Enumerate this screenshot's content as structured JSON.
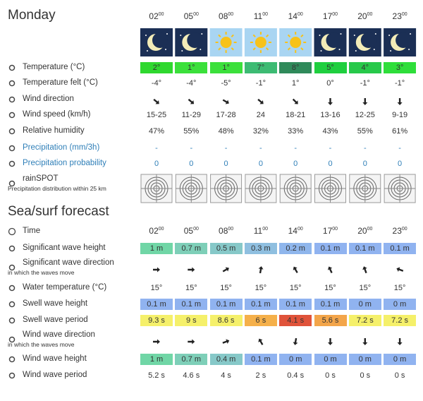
{
  "day": "Monday",
  "hours": [
    {
      "h": "02",
      "m": "00"
    },
    {
      "h": "05",
      "m": "00"
    },
    {
      "h": "08",
      "m": "00"
    },
    {
      "h": "11",
      "m": "00"
    },
    {
      "h": "14",
      "m": "00"
    },
    {
      "h": "17",
      "m": "00"
    },
    {
      "h": "20",
      "m": "00"
    },
    {
      "h": "23",
      "m": "00"
    }
  ],
  "weather": {
    "rows": [
      {
        "label": "Temperature (°C)",
        "values": [
          "2°",
          "1°",
          "1°",
          "7°",
          "8°",
          "5°",
          "4°",
          "3°"
        ],
        "colors": [
          "#2fd82f",
          "#3be03b",
          "#3be03b",
          "#3dbb73",
          "#2f8a5a",
          "#1fcf3f",
          "#27c94a",
          "#2ede3a"
        ]
      },
      {
        "label": "Temperature felt (°C)",
        "values": [
          "-4°",
          "-4°",
          "-5°",
          "-1°",
          "1°",
          "0°",
          "-1°",
          "-1°"
        ]
      },
      {
        "label": "Wind direction"
      },
      {
        "label": "Wind speed (km/h)",
        "values": [
          "15-25",
          "11-29",
          "17-28",
          "24",
          "18-21",
          "13-16",
          "12-25",
          "9-19"
        ]
      },
      {
        "label": "Relative humidity",
        "values": [
          "47%",
          "55%",
          "48%",
          "32%",
          "33%",
          "43%",
          "55%",
          "61%"
        ]
      },
      {
        "label": "Precipitation (mm/3h)",
        "values": [
          "-",
          "-",
          "-",
          "-",
          "-",
          "-",
          "-",
          "-"
        ],
        "color": "#2f7fb8"
      },
      {
        "label": "Precipitation probability",
        "values": [
          "0",
          "0",
          "0",
          "0",
          "0",
          "0",
          "0",
          "0"
        ],
        "color": "#2f7fb8"
      },
      {
        "label": "rainSPOT",
        "sub": "Precipitation distribution within 25 km"
      }
    ]
  },
  "sea": {
    "title": "Sea/surf forecast",
    "time_label": "Time",
    "hours": [
      {
        "h": "02",
        "m": "00"
      },
      {
        "h": "05",
        "m": "00"
      },
      {
        "h": "08",
        "m": "00"
      },
      {
        "h": "11",
        "m": "00"
      },
      {
        "h": "14",
        "m": "00"
      },
      {
        "h": "17",
        "m": "00"
      },
      {
        "h": "20",
        "m": "00"
      },
      {
        "h": "23",
        "m": "00"
      }
    ],
    "rows": [
      {
        "label": "Significant wave height",
        "values": [
          "1 m",
          "0.7 m",
          "0.5 m",
          "0.3 m",
          "0.2 m",
          "0.1 m",
          "0.1 m",
          "0.1 m"
        ],
        "colors": [
          "#70d6a6",
          "#7ecfb8",
          "#86c8c8",
          "#8fbfe0",
          "#8fb6ec",
          "#90b3f0",
          "#90b3f0",
          "#90b3f0"
        ]
      },
      {
        "label": "Significant wave direction",
        "sub": "in which the waves move"
      },
      {
        "label": "Water temperature (°C)",
        "values": [
          "15°",
          "15°",
          "15°",
          "15°",
          "15°",
          "15°",
          "15°",
          "15°"
        ]
      },
      {
        "label": "Swell wave height",
        "values": [
          "0.1 m",
          "0.1 m",
          "0.1 m",
          "0.1 m",
          "0.1 m",
          "0.1 m",
          "0 m",
          "0 m"
        ],
        "colors": [
          "#90b3f0",
          "#90b3f0",
          "#90b3f0",
          "#90b3f0",
          "#90b3f0",
          "#90b3f0",
          "#90b3f0",
          "#90b3f0"
        ]
      },
      {
        "label": "Swell wave period",
        "values": [
          "9.3 s",
          "9 s",
          "8.6 s",
          "6 s",
          "4.1 s",
          "5.6 s",
          "7.2 s",
          "7.2 s"
        ],
        "colors": [
          "#f5f06a",
          "#f5f06a",
          "#f5f06a",
          "#f5b04a",
          "#e0533a",
          "#f3a54a",
          "#f5f06a",
          "#f5f06a"
        ]
      },
      {
        "label": "Wind wave direction",
        "sub": "in which the waves move"
      },
      {
        "label": "Wind wave height",
        "values": [
          "1 m",
          "0.7 m",
          "0.4 m",
          "0.1 m",
          "0 m",
          "0 m",
          "0 m",
          "0 m"
        ],
        "colors": [
          "#70d6a6",
          "#7ecfb8",
          "#86c8c8",
          "#90b3f0",
          "#90b3f0",
          "#90b3f0",
          "#90b3f0",
          "#90b3f0"
        ]
      },
      {
        "label": "Wind wave period",
        "values": [
          "5.2 s",
          "4.6 s",
          "4 s",
          "2 s",
          "0.4 s",
          "0 s",
          "0 s",
          "0 s"
        ]
      }
    ]
  }
}
